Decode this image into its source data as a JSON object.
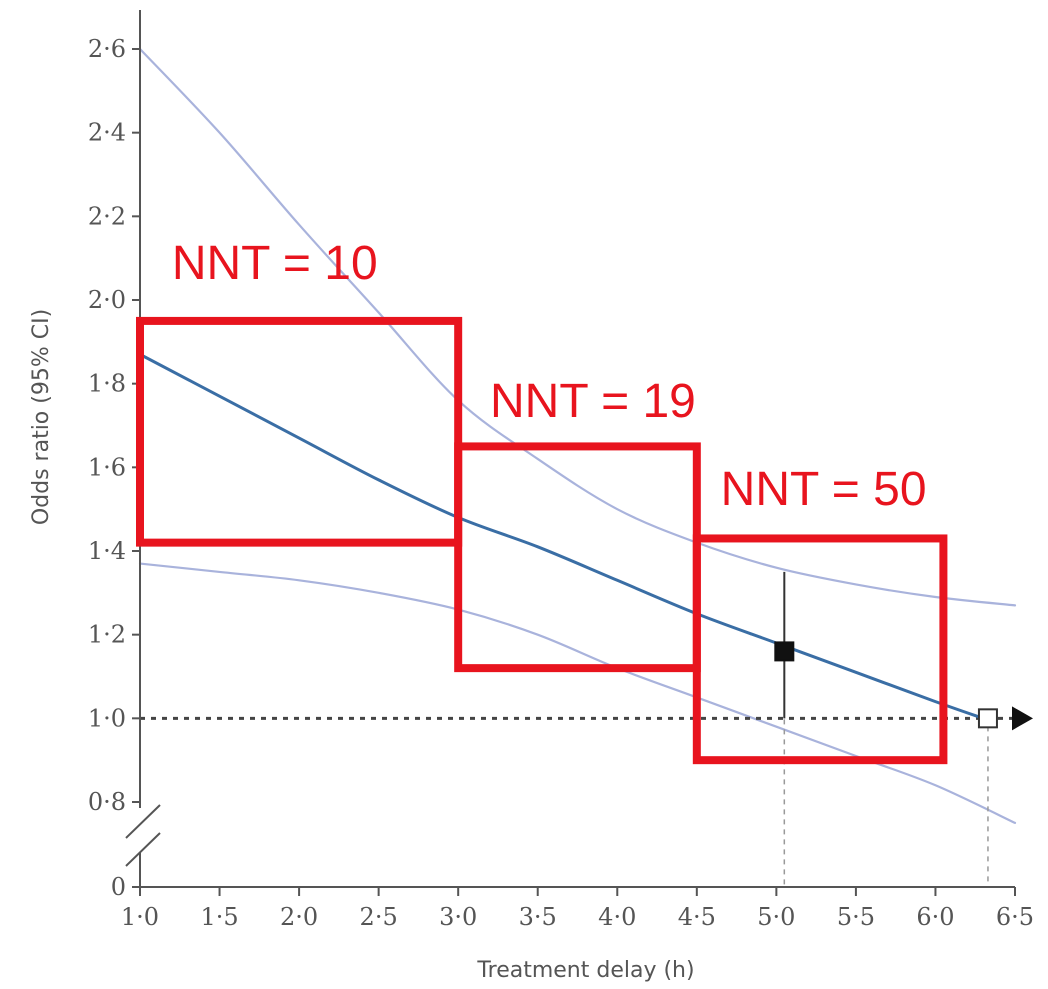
{
  "chart_data": {
    "type": "line",
    "xlabel": "Treatment delay (h)",
    "ylabel": "Odds ratio (95% CI)",
    "xlim": [
      1.0,
      6.5
    ],
    "ylim": [
      0.8,
      2.6
    ],
    "y_axis_break": true,
    "x_ticks": [
      1.0,
      1.5,
      2.0,
      2.5,
      3.0,
      3.5,
      4.0,
      4.5,
      5.0,
      5.5,
      6.0,
      6.5
    ],
    "x_tick_labels": [
      "1·0",
      "1·5",
      "2·0",
      "2·5",
      "3·0",
      "3·5",
      "4·0",
      "4·5",
      "5·0",
      "5·5",
      "6·0",
      "6·5"
    ],
    "y_ticks": [
      0.8,
      1.0,
      1.2,
      1.4,
      1.6,
      1.8,
      2.0,
      2.2,
      2.4,
      2.6
    ],
    "y_tick_labels": [
      "0·8",
      "1·0",
      "1·2",
      "1·4",
      "1·6",
      "1·8",
      "2·0",
      "2·2",
      "2·4",
      "2·6"
    ],
    "y_zero_label": "0",
    "series": [
      {
        "role": "estimate",
        "color": "#3a6ea5",
        "x": [
          1.0,
          1.5,
          2.0,
          2.5,
          3.0,
          3.5,
          4.0,
          4.5,
          5.0,
          5.5,
          6.0,
          6.3
        ],
        "y": [
          1.87,
          1.77,
          1.67,
          1.57,
          1.48,
          1.41,
          1.33,
          1.25,
          1.18,
          1.11,
          1.04,
          1.0
        ]
      },
      {
        "role": "upper-ci",
        "color": "#a9b3dc",
        "x": [
          1.0,
          1.5,
          2.0,
          2.5,
          3.0,
          3.5,
          4.0,
          4.5,
          5.0,
          5.5,
          6.0,
          6.5
        ],
        "y": [
          2.6,
          2.4,
          2.18,
          1.97,
          1.76,
          1.62,
          1.5,
          1.42,
          1.36,
          1.32,
          1.29,
          1.27
        ]
      },
      {
        "role": "lower-ci",
        "color": "#a9b3dc",
        "x": [
          1.0,
          1.5,
          2.0,
          2.5,
          3.0,
          3.5,
          4.0,
          4.5,
          5.0,
          5.5,
          6.0,
          6.5
        ],
        "y": [
          1.37,
          1.35,
          1.33,
          1.3,
          1.26,
          1.2,
          1.12,
          1.05,
          0.98,
          0.91,
          0.84,
          0.75
        ]
      }
    ],
    "reference_line": {
      "y": 1.0,
      "style": "dotted",
      "arrow": true
    },
    "points": [
      {
        "x": 5.05,
        "y": 1.16,
        "ci": [
          1.0,
          1.35
        ],
        "fill": "filled",
        "dropline": true
      },
      {
        "x": 6.33,
        "y": 1.0,
        "fill": "open",
        "dropline": true
      }
    ],
    "annotations": [
      {
        "text": "NNT = 10",
        "box": {
          "x0": 1.0,
          "x1": 3.0,
          "y0": 1.42,
          "y1": 1.95
        },
        "label_x": 1.2,
        "label_y": 2.05
      },
      {
        "text": "NNT = 19",
        "box": {
          "x0": 3.0,
          "x1": 4.5,
          "y0": 1.12,
          "y1": 1.65
        },
        "label_x": 3.2,
        "label_y": 1.72
      },
      {
        "text": "NNT = 50",
        "box": {
          "x0": 4.5,
          "x1": 6.05,
          "y0": 0.9,
          "y1": 1.43
        },
        "label_x": 4.65,
        "label_y": 1.51
      }
    ],
    "colors": {
      "annotation": "#e8141e",
      "axis": "#555555"
    }
  }
}
